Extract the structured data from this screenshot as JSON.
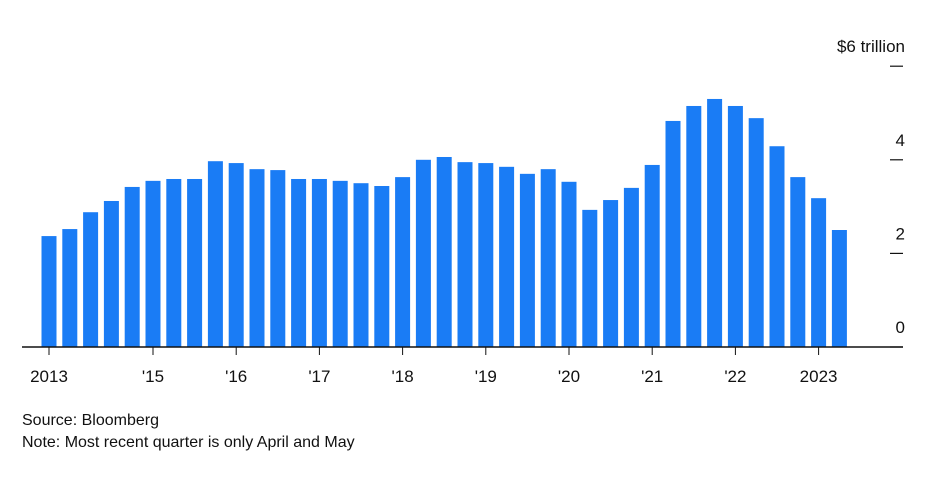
{
  "chart_data": {
    "type": "bar",
    "categories": [
      "2013",
      null,
      null,
      null,
      null,
      "'15",
      null,
      null,
      null,
      "'16",
      null,
      null,
      null,
      "'17",
      null,
      null,
      null,
      "'18",
      null,
      null,
      null,
      "'19",
      null,
      null,
      null,
      "'20",
      null,
      null,
      null,
      "'21",
      null,
      null,
      null,
      "'22",
      null,
      null,
      null,
      "2023",
      null
    ],
    "values": [
      2.37,
      2.52,
      2.88,
      3.12,
      3.42,
      3.55,
      3.59,
      3.59,
      3.97,
      3.93,
      3.8,
      3.78,
      3.59,
      3.59,
      3.55,
      3.5,
      3.44,
      3.63,
      4.0,
      4.06,
      3.95,
      3.93,
      3.85,
      3.7,
      3.8,
      3.53,
      2.93,
      3.14,
      3.4,
      3.89,
      4.83,
      5.15,
      5.3,
      5.15,
      4.89,
      4.29,
      3.63,
      3.18,
      2.5
    ],
    "color": "#1a7cf5",
    "ylim": [
      0,
      6.5
    ],
    "yticks": [
      0,
      2,
      4,
      {
        "value": 6,
        "label": "$6 trillion"
      }
    ],
    "source": "Source: Bloomberg",
    "note": "Note: Most recent quarter is only April and May"
  }
}
